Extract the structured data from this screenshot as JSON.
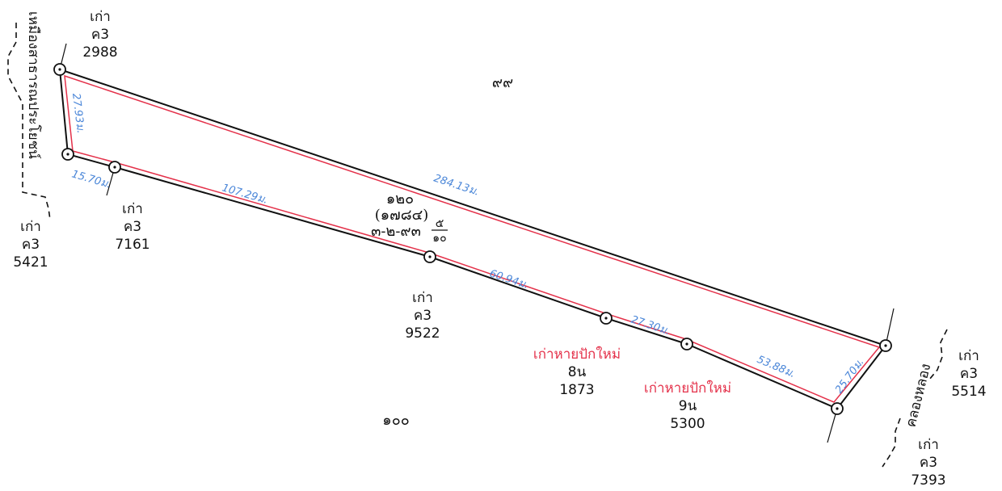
{
  "parcel": {
    "number": "๑๒๐",
    "sub_number": "(๑๗๘๔)",
    "area": "๓-๒-๙๓",
    "area_fraction_num": "๕",
    "area_fraction_den": "๑๐"
  },
  "neighbors": {
    "north": "๙๙",
    "south": "๑๐๐"
  },
  "roads": {
    "public_way": "เหมืองสาธารณประโยชน์",
    "canal": "คลองหลอง"
  },
  "dimensions": {
    "d1": "27.93ม.",
    "d2": "15.70ม.",
    "d3": "107.29ม.",
    "d4": "284.13ม.",
    "d5": "60.94ม.",
    "d6": "27.30ม.",
    "d7": "53.88ม.",
    "d8": "25.70ม."
  },
  "markers": [
    {
      "l1": "เก่า",
      "l2": "ค3",
      "l3": "2988"
    },
    {
      "l1": "เก่า",
      "l2": "ค3",
      "l3": "5421"
    },
    {
      "l1": "เก่า",
      "l2": "ค3",
      "l3": "7161"
    },
    {
      "l1": "เก่า",
      "l2": "ค3",
      "l3": "9522"
    },
    {
      "l1": "เก่าหายปักใหม่",
      "l2": "8น",
      "l3": "1873"
    },
    {
      "l1": "เก่าหายปักใหม่",
      "l2": "9น",
      "l3": "5300"
    },
    {
      "l1": "เก่า",
      "l2": "ค3",
      "l3": "5514"
    },
    {
      "l1": "เก่า",
      "l2": "ค3",
      "l3": "7393"
    }
  ],
  "colors": {
    "boundary_line": "#111111",
    "parcel_outline": "#e4314a",
    "dimension_text": "#4a86d8",
    "new_marker_text": "#e4314a"
  }
}
